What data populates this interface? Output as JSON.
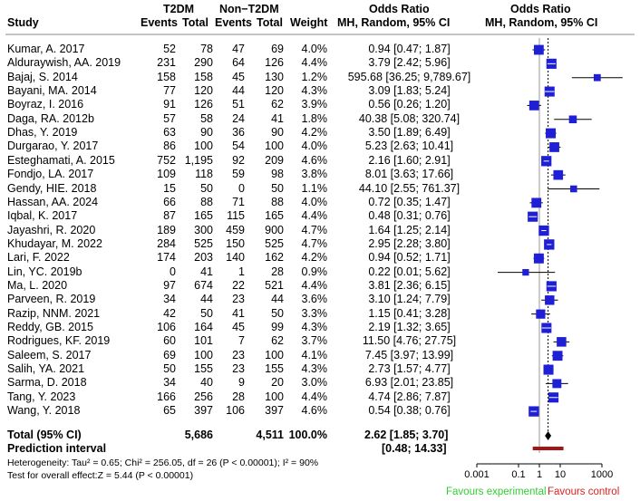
{
  "headers": {
    "study": "Study",
    "exp_group": "T2DM",
    "ctrl_group": "Non−T2DM",
    "events": "Events",
    "total": "Total",
    "weight": "Weight",
    "or_title": "Odds Ratio",
    "or_sub": "MH, Random, 95% CI",
    "plot_title": "Odds Ratio",
    "plot_sub": "MH, Random, 95% CI"
  },
  "chart_data": {
    "type": "forest",
    "x_scale": "log10",
    "xlim": [
      0.001,
      1000
    ],
    "x_ticks": [
      "0.001",
      "0.1",
      "1",
      "10",
      "1000"
    ],
    "x_tick_values": [
      0.001,
      0.1,
      1,
      10,
      1000
    ],
    "null_line": 1,
    "studies": [
      {
        "study": "Kumar, A. 2017",
        "e_events": "52",
        "e_total": "78",
        "c_events": "47",
        "c_total": "69",
        "weight": "4.0%",
        "or_text": "0.94 [0.47; 1.87]",
        "or": 0.94,
        "lo": 0.47,
        "hi": 1.87,
        "w": 4.0
      },
      {
        "study": "Alduraywish, AA. 2019",
        "e_events": "231",
        "e_total": "290",
        "c_events": "64",
        "c_total": "126",
        "weight": "4.4%",
        "or_text": "3.79 [2.42; 5.96]",
        "or": 3.79,
        "lo": 2.42,
        "hi": 5.96,
        "w": 4.4
      },
      {
        "study": "Bajaj, S. 2014",
        "e_events": "158",
        "e_total": "158",
        "c_events": "45",
        "c_total": "130",
        "weight": "1.2%",
        "or_text": "595.68 [36.25; 9,789.67]",
        "or": 595.68,
        "lo": 36.25,
        "hi": 9789.67,
        "w": 1.2
      },
      {
        "study": "Bayani, MA. 2014",
        "e_events": "77",
        "e_total": "120",
        "c_events": "44",
        "c_total": "120",
        "weight": "4.3%",
        "or_text": "3.09 [1.83; 5.24]",
        "or": 3.09,
        "lo": 1.83,
        "hi": 5.24,
        "w": 4.3
      },
      {
        "study": "Boyraz, I. 2016",
        "e_events": "91",
        "e_total": "126",
        "c_events": "51",
        "c_total": "62",
        "weight": "3.9%",
        "or_text": "0.56 [0.26; 1.20]",
        "or": 0.56,
        "lo": 0.26,
        "hi": 1.2,
        "w": 3.9
      },
      {
        "study": "Daga, RA. 2012b",
        "e_events": "57",
        "e_total": "58",
        "c_events": "24",
        "c_total": "41",
        "weight": "1.8%",
        "or_text": "40.38 [5.08; 320.74]",
        "or": 40.38,
        "lo": 5.08,
        "hi": 320.74,
        "w": 1.8
      },
      {
        "study": "Dhas, Y. 2019",
        "e_events": "63",
        "e_total": "90",
        "c_events": "36",
        "c_total": "90",
        "weight": "4.2%",
        "or_text": "3.50 [1.89; 6.49]",
        "or": 3.5,
        "lo": 1.89,
        "hi": 6.49,
        "w": 4.2
      },
      {
        "study": "Durgarao, Y. 2017",
        "e_events": "86",
        "e_total": "100",
        "c_events": "54",
        "c_total": "100",
        "weight": "4.0%",
        "or_text": "5.23 [2.63; 10.41]",
        "or": 5.23,
        "lo": 2.63,
        "hi": 10.41,
        "w": 4.0
      },
      {
        "study": "Esteghamati, A. 2015",
        "e_events": "752",
        "e_total": "1,195",
        "c_events": "92",
        "c_total": "209",
        "weight": "4.6%",
        "or_text": "2.16 [1.60; 2.91]",
        "or": 2.16,
        "lo": 1.6,
        "hi": 2.91,
        "w": 4.6
      },
      {
        "study": "Fondjo, LA. 2017",
        "e_events": "109",
        "e_total": "118",
        "c_events": "59",
        "c_total": "98",
        "weight": "3.8%",
        "or_text": "8.01 [3.63; 17.66]",
        "or": 8.01,
        "lo": 3.63,
        "hi": 17.66,
        "w": 3.8
      },
      {
        "study": "Gendy, HIE. 2018",
        "e_events": "15",
        "e_total": "50",
        "c_events": "0",
        "c_total": "50",
        "weight": "1.1%",
        "or_text": "44.10 [2.55; 761.37]",
        "or": 44.1,
        "lo": 2.55,
        "hi": 761.37,
        "w": 1.1
      },
      {
        "study": "Hassan, AA. 2024",
        "e_events": "66",
        "e_total": "88",
        "c_events": "71",
        "c_total": "88",
        "weight": "4.0%",
        "or_text": "0.72 [0.35; 1.47]",
        "or": 0.72,
        "lo": 0.35,
        "hi": 1.47,
        "w": 4.0
      },
      {
        "study": "Iqbal, K. 2017",
        "e_events": "87",
        "e_total": "165",
        "c_events": "115",
        "c_total": "165",
        "weight": "4.4%",
        "or_text": "0.48 [0.31; 0.76]",
        "or": 0.48,
        "lo": 0.31,
        "hi": 0.76,
        "w": 4.4
      },
      {
        "study": "Jayashri, R. 2020",
        "e_events": "189",
        "e_total": "300",
        "c_events": "459",
        "c_total": "900",
        "weight": "4.7%",
        "or_text": "1.64 [1.25; 2.14]",
        "or": 1.64,
        "lo": 1.25,
        "hi": 2.14,
        "w": 4.7
      },
      {
        "study": "Khudayar, M. 2022",
        "e_events": "284",
        "e_total": "525",
        "c_events": "150",
        "c_total": "525",
        "weight": "4.7%",
        "or_text": "2.95 [2.28; 3.80]",
        "or": 2.95,
        "lo": 2.28,
        "hi": 3.8,
        "w": 4.7
      },
      {
        "study": "Lari, F. 2022",
        "e_events": "174",
        "e_total": "203",
        "c_events": "140",
        "c_total": "162",
        "weight": "4.2%",
        "or_text": "0.94 [0.52; 1.71]",
        "or": 0.94,
        "lo": 0.52,
        "hi": 1.71,
        "w": 4.2
      },
      {
        "study": "Lin, YC. 2019b",
        "e_events": "0",
        "e_total": "41",
        "c_events": "1",
        "c_total": "28",
        "weight": "0.9%",
        "or_text": "0.22 [0.01; 5.62]",
        "or": 0.22,
        "lo": 0.01,
        "hi": 5.62,
        "w": 0.9
      },
      {
        "study": "Ma, L. 2020",
        "e_events": "97",
        "e_total": "674",
        "c_events": "22",
        "c_total": "521",
        "weight": "4.4%",
        "or_text": "3.81 [2.36; 6.15]",
        "or": 3.81,
        "lo": 2.36,
        "hi": 6.15,
        "w": 4.4
      },
      {
        "study": "Parveen, R. 2019",
        "e_events": "34",
        "e_total": "44",
        "c_events": "23",
        "c_total": "44",
        "weight": "3.6%",
        "or_text": "3.10 [1.24; 7.79]",
        "or": 3.1,
        "lo": 1.24,
        "hi": 7.79,
        "w": 3.6
      },
      {
        "study": "Razip, NNM. 2021",
        "e_events": "42",
        "e_total": "50",
        "c_events": "41",
        "c_total": "50",
        "weight": "3.3%",
        "or_text": "1.15 [0.41; 3.28]",
        "or": 1.15,
        "lo": 0.41,
        "hi": 3.28,
        "w": 3.3
      },
      {
        "study": "Reddy, GB. 2015",
        "e_events": "106",
        "e_total": "164",
        "c_events": "45",
        "c_total": "99",
        "weight": "4.3%",
        "or_text": "2.19 [1.32; 3.65]",
        "or": 2.19,
        "lo": 1.32,
        "hi": 3.65,
        "w": 4.3
      },
      {
        "study": "Rodrigues, KF. 2019",
        "e_events": "60",
        "e_total": "101",
        "c_events": "7",
        "c_total": "62",
        "weight": "3.7%",
        "or_text": "11.50 [4.76; 27.75]",
        "or": 11.5,
        "lo": 4.76,
        "hi": 27.75,
        "w": 3.7
      },
      {
        "study": "Saleem, S. 2017",
        "e_events": "69",
        "e_total": "100",
        "c_events": "23",
        "c_total": "100",
        "weight": "4.1%",
        "or_text": "7.45 [3.97; 13.99]",
        "or": 7.45,
        "lo": 3.97,
        "hi": 13.99,
        "w": 4.1
      },
      {
        "study": "Salih, YA. 2021",
        "e_events": "50",
        "e_total": "155",
        "c_events": "23",
        "c_total": "155",
        "weight": "4.3%",
        "or_text": "2.73 [1.57; 4.77]",
        "or": 2.73,
        "lo": 1.57,
        "hi": 4.77,
        "w": 4.3
      },
      {
        "study": "Sarma, D. 2018",
        "e_events": "34",
        "e_total": "40",
        "c_events": "9",
        "c_total": "20",
        "weight": "3.0%",
        "or_text": "6.93 [2.01; 23.85]",
        "or": 6.93,
        "lo": 2.01,
        "hi": 23.85,
        "w": 3.0
      },
      {
        "study": "Tang, Y. 2023",
        "e_events": "166",
        "e_total": "256",
        "c_events": "28",
        "c_total": "100",
        "weight": "4.4%",
        "or_text": "4.74 [2.86; 7.87]",
        "or": 4.74,
        "lo": 2.86,
        "hi": 7.87,
        "w": 4.4
      },
      {
        "study": "Wang, Y. 2018",
        "e_events": "65",
        "e_total": "397",
        "c_events": "106",
        "c_total": "397",
        "weight": "4.6%",
        "or_text": "0.54 [0.38; 0.76]",
        "or": 0.54,
        "lo": 0.38,
        "hi": 0.76,
        "w": 4.6
      }
    ],
    "pooled": {
      "or": 2.62,
      "lo": 1.85,
      "hi": 3.7
    },
    "prediction_interval": {
      "lo": 0.48,
      "hi": 14.33
    }
  },
  "total": {
    "label": "Total (95% CI)",
    "e_total": "5,686",
    "c_total": "4,511",
    "weight": "100.0%",
    "or_text": "2.62 [1.85; 3.70]"
  },
  "prediction": {
    "label": "Prediction interval",
    "text": "[0.48; 14.33]"
  },
  "footer": {
    "heterogeneity": "Heterogeneity: Tau² = 0.65; Chi² = 256.05, df = 26 (P < 0.00001); I² = 90%",
    "overall": "Test for overall effect:Z = 5.44 (P < 0.00001)",
    "favours_left": "Favours experimental",
    "favours_right": "Favours control"
  },
  "colors": {
    "study_marker": "#1f1fd6",
    "pooled_marker": "#000000",
    "prediction_bar": "#a31616",
    "favours_left": "#33cc33",
    "favours_right": "#e02020"
  }
}
